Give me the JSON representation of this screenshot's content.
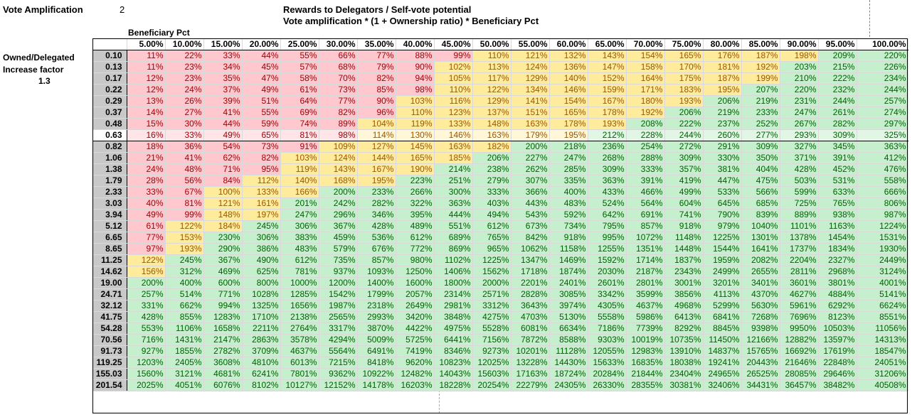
{
  "header": {
    "vote_amp_label": "Vote Amplification",
    "vote_amp_value": "2",
    "note_line1": "Rewards to Delegators / Self-vote potential",
    "note_line2": "Vote amplification * (1 + Ownership ratio) * Beneficiary Pct",
    "beneficiary_label": "Beneficiary Pct",
    "owned_label": "Owned/Delegated",
    "increase_label": "Increase factor",
    "increase_value": "1.3"
  },
  "colors": {
    "red_fill": "#ffc7ce",
    "yellow_fill": "#ffeb9c",
    "green_fill": "#c6efce"
  },
  "columns": [
    "5.00%",
    "10.00%",
    "15.00%",
    "20.00%",
    "25.00%",
    "30.00%",
    "35.00%",
    "40.00%",
    "45.00%",
    "50.00%",
    "55.00%",
    "60.00%",
    "65.00%",
    "70.00%",
    "75.00%",
    "80.00%",
    "85.00%",
    "90.00%",
    "95.00%",
    "100.00%"
  ],
  "highlight_row": "0.63",
  "rows": [
    {
      "ratio": "0.10",
      "cells": [
        "11%",
        "22%",
        "33%",
        "44%",
        "55%",
        "66%",
        "77%",
        "88%",
        "99%",
        "110%",
        "121%",
        "132%",
        "143%",
        "154%",
        "165%",
        "176%",
        "187%",
        "198%",
        "209%",
        "220%"
      ]
    },
    {
      "ratio": "0.13",
      "cells": [
        "11%",
        "23%",
        "34%",
        "45%",
        "57%",
        "68%",
        "79%",
        "90%",
        "102%",
        "113%",
        "124%",
        "136%",
        "147%",
        "158%",
        "170%",
        "181%",
        "192%",
        "203%",
        "215%",
        "226%"
      ]
    },
    {
      "ratio": "0.17",
      "cells": [
        "12%",
        "23%",
        "35%",
        "47%",
        "58%",
        "70%",
        "82%",
        "94%",
        "105%",
        "117%",
        "129%",
        "140%",
        "152%",
        "164%",
        "175%",
        "187%",
        "199%",
        "210%",
        "222%",
        "234%"
      ]
    },
    {
      "ratio": "0.22",
      "cells": [
        "12%",
        "24%",
        "37%",
        "49%",
        "61%",
        "73%",
        "85%",
        "98%",
        "110%",
        "122%",
        "134%",
        "146%",
        "159%",
        "171%",
        "183%",
        "195%",
        "207%",
        "220%",
        "232%",
        "244%"
      ]
    },
    {
      "ratio": "0.29",
      "cells": [
        "13%",
        "26%",
        "39%",
        "51%",
        "64%",
        "77%",
        "90%",
        "103%",
        "116%",
        "129%",
        "141%",
        "154%",
        "167%",
        "180%",
        "193%",
        "206%",
        "219%",
        "231%",
        "244%",
        "257%"
      ]
    },
    {
      "ratio": "0.37",
      "cells": [
        "14%",
        "27%",
        "41%",
        "55%",
        "69%",
        "82%",
        "96%",
        "110%",
        "123%",
        "137%",
        "151%",
        "165%",
        "178%",
        "192%",
        "206%",
        "219%",
        "233%",
        "247%",
        "261%",
        "274%"
      ]
    },
    {
      "ratio": "0.48",
      "cells": [
        "15%",
        "30%",
        "44%",
        "59%",
        "74%",
        "89%",
        "104%",
        "119%",
        "133%",
        "148%",
        "163%",
        "178%",
        "193%",
        "208%",
        "222%",
        "237%",
        "252%",
        "267%",
        "282%",
        "297%"
      ]
    },
    {
      "ratio": "0.63",
      "cells": [
        "16%",
        "33%",
        "49%",
        "65%",
        "81%",
        "98%",
        "114%",
        "130%",
        "146%",
        "163%",
        "179%",
        "195%",
        "212%",
        "228%",
        "244%",
        "260%",
        "277%",
        "293%",
        "309%",
        "325%"
      ]
    },
    {
      "ratio": "0.82",
      "cells": [
        "18%",
        "36%",
        "54%",
        "73%",
        "91%",
        "109%",
        "127%",
        "145%",
        "163%",
        "182%",
        "200%",
        "218%",
        "236%",
        "254%",
        "272%",
        "291%",
        "309%",
        "327%",
        "345%",
        "363%"
      ]
    },
    {
      "ratio": "1.06",
      "cells": [
        "21%",
        "41%",
        "62%",
        "82%",
        "103%",
        "124%",
        "144%",
        "165%",
        "185%",
        "206%",
        "227%",
        "247%",
        "268%",
        "288%",
        "309%",
        "330%",
        "350%",
        "371%",
        "391%",
        "412%"
      ]
    },
    {
      "ratio": "1.38",
      "cells": [
        "24%",
        "48%",
        "71%",
        "95%",
        "119%",
        "143%",
        "167%",
        "190%",
        "214%",
        "238%",
        "262%",
        "285%",
        "309%",
        "333%",
        "357%",
        "381%",
        "404%",
        "428%",
        "452%",
        "476%"
      ]
    },
    {
      "ratio": "1.79",
      "cells": [
        "28%",
        "56%",
        "84%",
        "112%",
        "140%",
        "168%",
        "195%",
        "223%",
        "251%",
        "279%",
        "307%",
        "335%",
        "363%",
        "391%",
        "419%",
        "447%",
        "475%",
        "503%",
        "531%",
        "558%"
      ]
    },
    {
      "ratio": "2.33",
      "cells": [
        "33%",
        "67%",
        "100%",
        "133%",
        "166%",
        "200%",
        "233%",
        "266%",
        "300%",
        "333%",
        "366%",
        "400%",
        "433%",
        "466%",
        "499%",
        "533%",
        "566%",
        "599%",
        "633%",
        "666%"
      ]
    },
    {
      "ratio": "3.03",
      "cells": [
        "40%",
        "81%",
        "121%",
        "161%",
        "201%",
        "242%",
        "282%",
        "322%",
        "363%",
        "403%",
        "443%",
        "483%",
        "524%",
        "564%",
        "604%",
        "645%",
        "685%",
        "725%",
        "765%",
        "806%"
      ]
    },
    {
      "ratio": "3.94",
      "cells": [
        "49%",
        "99%",
        "148%",
        "197%",
        "247%",
        "296%",
        "346%",
        "395%",
        "444%",
        "494%",
        "543%",
        "592%",
        "642%",
        "691%",
        "741%",
        "790%",
        "839%",
        "889%",
        "938%",
        "987%"
      ]
    },
    {
      "ratio": "5.12",
      "cells": [
        "61%",
        "122%",
        "184%",
        "245%",
        "306%",
        "367%",
        "428%",
        "489%",
        "551%",
        "612%",
        "673%",
        "734%",
        "795%",
        "857%",
        "918%",
        "979%",
        "1040%",
        "1101%",
        "1163%",
        "1224%"
      ]
    },
    {
      "ratio": "6.65",
      "cells": [
        "77%",
        "153%",
        "230%",
        "306%",
        "383%",
        "459%",
        "536%",
        "612%",
        "689%",
        "765%",
        "842%",
        "918%",
        "995%",
        "1072%",
        "1148%",
        "1225%",
        "1301%",
        "1378%",
        "1454%",
        "1531%"
      ]
    },
    {
      "ratio": "8.65",
      "cells": [
        "97%",
        "193%",
        "290%",
        "386%",
        "483%",
        "579%",
        "676%",
        "772%",
        "869%",
        "965%",
        "1062%",
        "1158%",
        "1255%",
        "1351%",
        "1448%",
        "1544%",
        "1641%",
        "1737%",
        "1834%",
        "1930%"
      ]
    },
    {
      "ratio": "11.25",
      "cells": [
        "122%",
        "245%",
        "367%",
        "490%",
        "612%",
        "735%",
        "857%",
        "980%",
        "1102%",
        "1225%",
        "1347%",
        "1469%",
        "1592%",
        "1714%",
        "1837%",
        "1959%",
        "2082%",
        "2204%",
        "2327%",
        "2449%"
      ]
    },
    {
      "ratio": "14.62",
      "cells": [
        "156%",
        "312%",
        "469%",
        "625%",
        "781%",
        "937%",
        "1093%",
        "1250%",
        "1406%",
        "1562%",
        "1718%",
        "1874%",
        "2030%",
        "2187%",
        "2343%",
        "2499%",
        "2655%",
        "2811%",
        "2968%",
        "3124%"
      ]
    },
    {
      "ratio": "19.00",
      "cells": [
        "200%",
        "400%",
        "600%",
        "800%",
        "1000%",
        "1200%",
        "1400%",
        "1600%",
        "1800%",
        "2000%",
        "2201%",
        "2401%",
        "2601%",
        "2801%",
        "3001%",
        "3201%",
        "3401%",
        "3601%",
        "3801%",
        "4001%"
      ]
    },
    {
      "ratio": "24.71",
      "cells": [
        "257%",
        "514%",
        "771%",
        "1028%",
        "1285%",
        "1542%",
        "1799%",
        "2057%",
        "2314%",
        "2571%",
        "2828%",
        "3085%",
        "3342%",
        "3599%",
        "3856%",
        "4113%",
        "4370%",
        "4627%",
        "4884%",
        "5141%"
      ]
    },
    {
      "ratio": "32.12",
      "cells": [
        "331%",
        "662%",
        "994%",
        "1325%",
        "1656%",
        "1987%",
        "2318%",
        "2649%",
        "2981%",
        "3312%",
        "3643%",
        "3974%",
        "4305%",
        "4637%",
        "4968%",
        "5299%",
        "5630%",
        "5961%",
        "6292%",
        "6624%"
      ]
    },
    {
      "ratio": "41.75",
      "cells": [
        "428%",
        "855%",
        "1283%",
        "1710%",
        "2138%",
        "2565%",
        "2993%",
        "3420%",
        "3848%",
        "4275%",
        "4703%",
        "5130%",
        "5558%",
        "5986%",
        "6413%",
        "6841%",
        "7268%",
        "7696%",
        "8123%",
        "8551%"
      ]
    },
    {
      "ratio": "54.28",
      "cells": [
        "553%",
        "1106%",
        "1658%",
        "2211%",
        "2764%",
        "3317%",
        "3870%",
        "4422%",
        "4975%",
        "5528%",
        "6081%",
        "6634%",
        "7186%",
        "7739%",
        "8292%",
        "8845%",
        "9398%",
        "9950%",
        "10503%",
        "11056%"
      ]
    },
    {
      "ratio": "70.56",
      "cells": [
        "716%",
        "1431%",
        "2147%",
        "2863%",
        "3578%",
        "4294%",
        "5009%",
        "5725%",
        "6441%",
        "7156%",
        "7872%",
        "8588%",
        "9303%",
        "10019%",
        "10735%",
        "11450%",
        "12166%",
        "12882%",
        "13597%",
        "14313%"
      ]
    },
    {
      "ratio": "91.73",
      "cells": [
        "927%",
        "1855%",
        "2782%",
        "3709%",
        "4637%",
        "5564%",
        "6491%",
        "7419%",
        "8346%",
        "9273%",
        "10201%",
        "11128%",
        "12055%",
        "12983%",
        "13910%",
        "14837%",
        "15765%",
        "16692%",
        "17619%",
        "18547%"
      ]
    },
    {
      "ratio": "119.25",
      "cells": [
        "1203%",
        "2405%",
        "3608%",
        "4810%",
        "6013%",
        "7215%",
        "8418%",
        "9620%",
        "10823%",
        "12025%",
        "13228%",
        "14430%",
        "15633%",
        "16835%",
        "18038%",
        "19241%",
        "20443%",
        "21646%",
        "22848%",
        "24051%"
      ]
    },
    {
      "ratio": "155.03",
      "cells": [
        "1560%",
        "3121%",
        "4681%",
        "6241%",
        "7801%",
        "9362%",
        "10922%",
        "12482%",
        "14043%",
        "15603%",
        "17163%",
        "18724%",
        "20284%",
        "21844%",
        "23404%",
        "24965%",
        "26525%",
        "28085%",
        "29646%",
        "31206%"
      ]
    },
    {
      "ratio": "201.54",
      "cells": [
        "2025%",
        "4051%",
        "6076%",
        "8102%",
        "10127%",
        "12152%",
        "14178%",
        "16203%",
        "18228%",
        "20254%",
        "22279%",
        "24305%",
        "26330%",
        "28355%",
        "30381%",
        "32406%",
        "34431%",
        "36457%",
        "38482%",
        "40508%"
      ]
    }
  ]
}
